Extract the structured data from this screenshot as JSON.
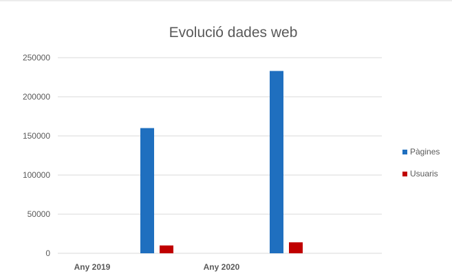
{
  "chart_data": {
    "type": "bar",
    "title": "Evolució dades web",
    "categories": [
      "Any 2019",
      "Any 2020"
    ],
    "series": [
      {
        "name": "Pàgines",
        "values": [
          160000,
          233000
        ],
        "color": "#1f6fbf"
      },
      {
        "name": "Usuaris",
        "values": [
          10000,
          14000
        ],
        "color": "#c00000"
      }
    ],
    "ylim": [
      0,
      250000
    ],
    "yticks": [
      0,
      50000,
      100000,
      150000,
      200000,
      250000
    ],
    "grid": true,
    "legend_position": "right"
  }
}
